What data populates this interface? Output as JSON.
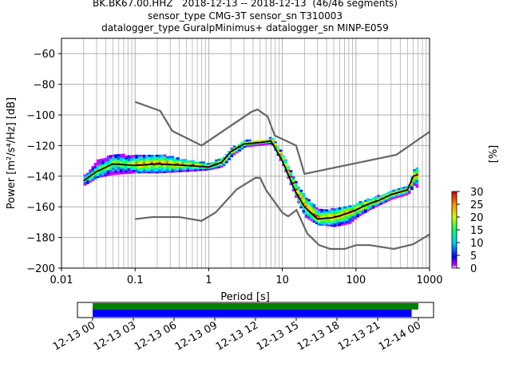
{
  "title": {
    "line1": "BK.BK67.00.HHZ   2018-12-13 -- 2018-12-13  (46/46 segments)",
    "line2": "sensor_type CMG-3T sensor_sn T310003",
    "line3": "datalogger_type GuralpMinimus+ datalogger_sn MINP-E059"
  },
  "colorbar": {
    "label": "[%]",
    "ticks": [
      "0",
      "5",
      "10",
      "15",
      "20",
      "25",
      "30"
    ],
    "range": [
      0,
      30
    ]
  },
  "timeline": {
    "ticks": [
      "12-13 00",
      "12-13 03",
      "12-13 06",
      "12-13 09",
      "12-13 12",
      "12-13 15",
      "12-13 18",
      "12-13 21",
      "12-14 00"
    ],
    "data_coverage_color": "#008000",
    "gap_free_color": "#0000ff",
    "data_coverage_hours": [
      0,
      24
    ],
    "gap_free_hours": [
      0,
      23.5
    ]
  },
  "chart_data": {
    "type": "heatmap",
    "title": "BK.BK67.00.HHZ   2018-12-13 -- 2018-12-13  (46/46 segments)",
    "xlabel": "Period [s]",
    "ylabel": "Power [m²/s⁴/Hz] [dB]",
    "xscale": "log",
    "xlim": [
      0.01,
      1000
    ],
    "ylim": [
      -200,
      -50
    ],
    "xticks": [
      "0.01",
      "0.1",
      "1",
      "10",
      "100",
      "1000"
    ],
    "yticks": [
      "−200",
      "−180",
      "−160",
      "−140",
      "−120",
      "−100",
      "−80",
      "−60"
    ],
    "grid": true,
    "mean_curve": {
      "period": [
        0.02,
        0.03,
        0.05,
        0.1,
        0.2,
        0.5,
        1,
        1.5,
        2,
        3,
        5,
        7,
        10,
        15,
        20,
        30,
        50,
        80,
        100,
        150,
        200,
        300,
        500,
        600,
        700
      ],
      "power": [
        -143,
        -137,
        -132,
        -133,
        -132,
        -133,
        -134,
        -131,
        -124,
        -119,
        -118,
        -117,
        -130,
        -150,
        -160,
        -168,
        -167,
        -164,
        -162,
        -158,
        -156,
        -152,
        -149,
        -140,
        -139
      ]
    },
    "spread": {
      "period": [
        0.02,
        0.03,
        0.05,
        0.1,
        0.2,
        0.5,
        1,
        1.5,
        2,
        3,
        5,
        7,
        10,
        15,
        20,
        30,
        50,
        80,
        100,
        150,
        200,
        300,
        500,
        600,
        700
      ],
      "upper": [
        -140,
        -130,
        -126,
        -127,
        -126,
        -130,
        -132,
        -128,
        -122,
        -117,
        -117,
        -115,
        -127,
        -145,
        -154,
        -162,
        -162,
        -160,
        -158,
        -155,
        -153,
        -150,
        -147,
        -135,
        -135
      ],
      "lower": [
        -146,
        -141,
        -139,
        -138,
        -138,
        -137,
        -136,
        -134,
        -127,
        -121,
        -120,
        -119,
        -134,
        -155,
        -167,
        -172,
        -173,
        -171,
        -167,
        -162,
        -159,
        -155,
        -152,
        -146,
        -149
      ]
    },
    "noise_models": {
      "high": {
        "period": [
          0.1,
          0.22,
          0.32,
          0.8,
          3.8,
          4.6,
          6.3,
          7.9,
          15.4,
          20,
          354.8,
          1000
        ],
        "power": [
          -91.5,
          -97.4,
          -110.5,
          -120,
          -98,
          -96.5,
          -101,
          -113.5,
          -120,
          -138.5,
          -126,
          -111
        ]
      },
      "low": {
        "period": [
          0.1,
          0.17,
          0.4,
          0.8,
          1.24,
          2.4,
          4.3,
          5,
          6,
          10,
          12,
          15.6,
          21.9,
          31.6,
          45,
          70,
          101,
          154,
          328,
          600,
          1000
        ],
        "power": [
          -168,
          -166.7,
          -166.7,
          -169.2,
          -163.7,
          -148.6,
          -141.1,
          -141.1,
          -149,
          -163.8,
          -166.2,
          -162.1,
          -177.5,
          -185,
          -187.5,
          -187.5,
          -185,
          -185,
          -187.5,
          -184.4,
          -178
        ]
      }
    }
  }
}
